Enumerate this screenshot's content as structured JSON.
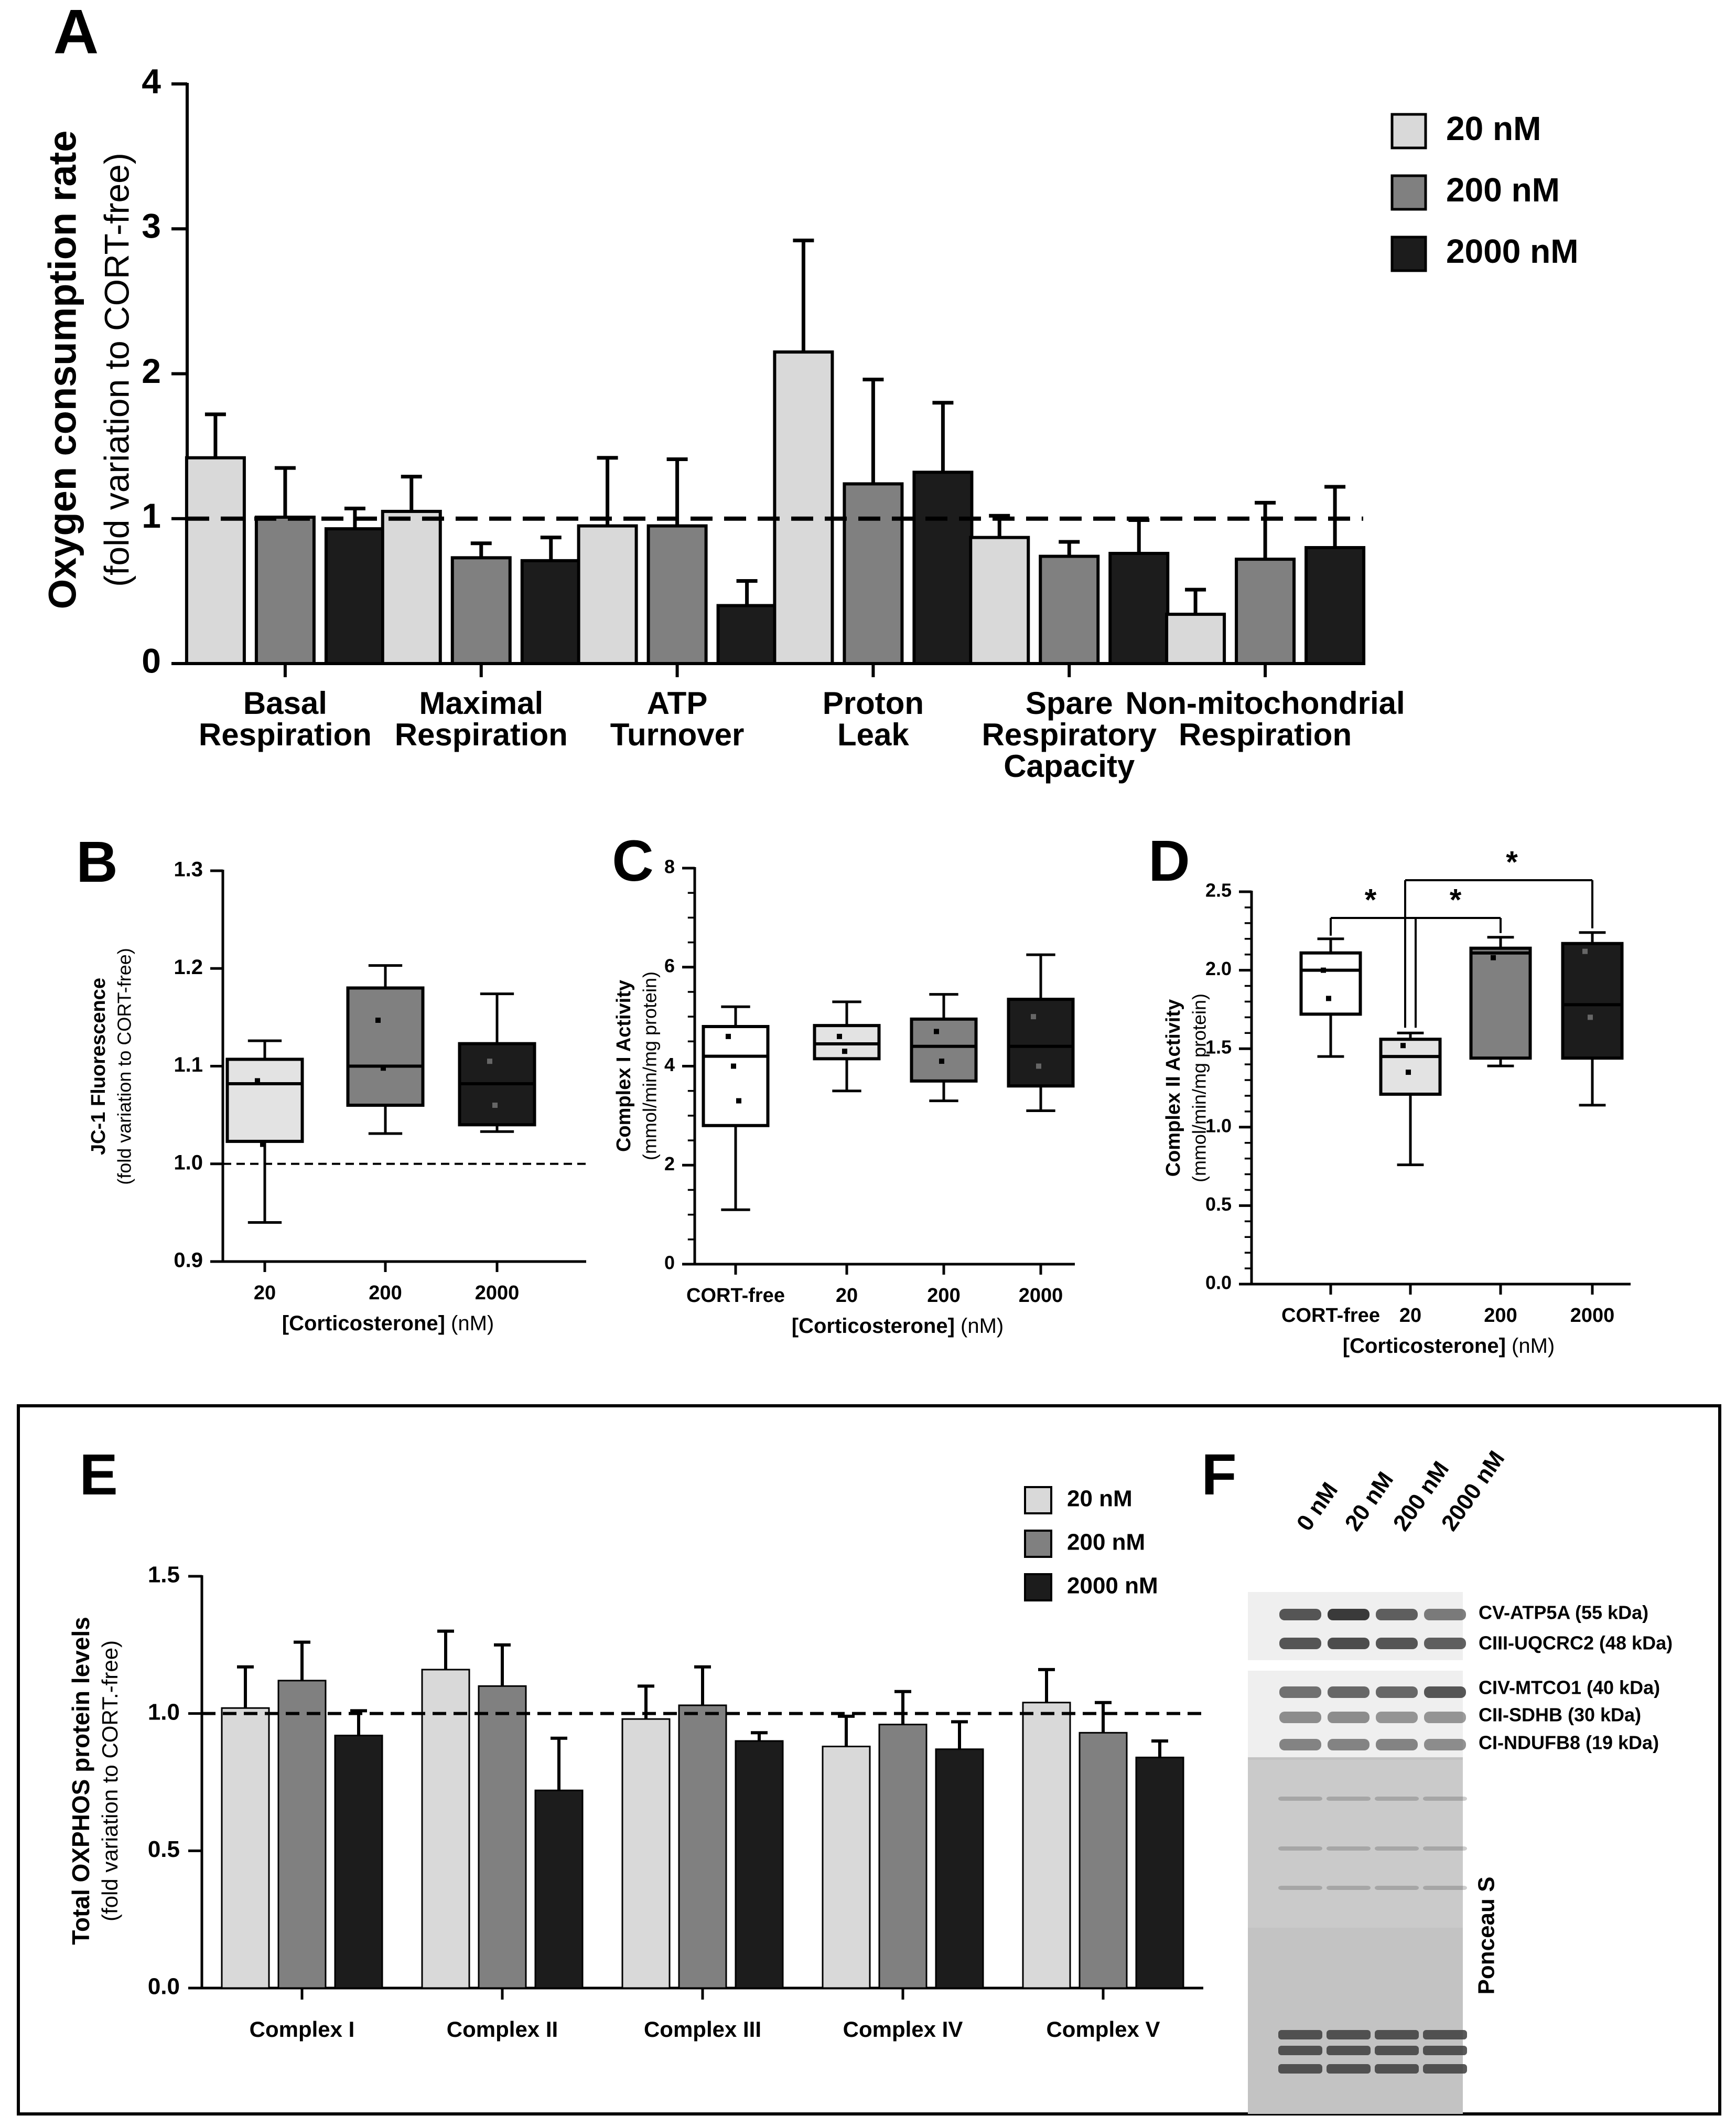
{
  "colors": {
    "c20": "#d9d9d9",
    "c200": "#808080",
    "c2000": "#1c1c1c",
    "cortfree": "#ffffff",
    "stroke": "#000000",
    "blot_bg": "#efefef",
    "band": "#3a3a3a",
    "ponceau": "#c3c3c3"
  },
  "chart_data": [
    {
      "panel": "A",
      "type": "bar",
      "ylabel": "Oxygen consumption rate",
      "ylabel2": "(fold variation to CORT-free)",
      "ylim": [
        0,
        4
      ],
      "yticks": [
        "0",
        "1",
        "2",
        "3",
        "4"
      ],
      "ytick_values": [
        0,
        1,
        2,
        3,
        4
      ],
      "reference_line": 1,
      "categories": [
        [
          "Basal",
          "Respiration"
        ],
        [
          "Maximal",
          "Respiration"
        ],
        [
          "ATP",
          "Turnover"
        ],
        [
          "Proton",
          "Leak"
        ],
        [
          "Spare",
          "Respiratory",
          "Capacity"
        ],
        [
          "Non-mitochondrial",
          "Respiration"
        ]
      ],
      "series": [
        {
          "name": "20 nM",
          "values": [
            1.42,
            1.05,
            0.95,
            2.15,
            0.87,
            0.34
          ],
          "errors": [
            0.3,
            0.24,
            0.47,
            0.77,
            0.15,
            0.17
          ]
        },
        {
          "name": "200 nM",
          "values": [
            1.01,
            0.73,
            0.95,
            1.24,
            0.74,
            0.72
          ],
          "errors": [
            0.34,
            0.1,
            0.46,
            0.72,
            0.1,
            0.39
          ]
        },
        {
          "name": "2000 nM",
          "values": [
            0.93,
            0.71,
            0.4,
            1.32,
            0.76,
            0.8
          ],
          "errors": [
            0.14,
            0.16,
            0.17,
            0.48,
            0.23,
            0.42
          ]
        }
      ],
      "legend": [
        "20 nM",
        "200 nM",
        "2000 nM"
      ]
    },
    {
      "panel": "B",
      "type": "box",
      "ylabel": "JC-1 Fluorescence",
      "ylabel2": "(fold variation to CORT-free)",
      "ylim": [
        0.9,
        1.3
      ],
      "yticks": [
        "0.9",
        "1.0",
        "1.1",
        "1.2",
        "1.3"
      ],
      "ytick_values": [
        0.9,
        1.0,
        1.1,
        1.2,
        1.3
      ],
      "reference_line": 1.0,
      "xlabel_bold": "[Corticosterone]",
      "xlabel_unit": " (nM)",
      "categories": [
        "20",
        "200",
        "2000"
      ],
      "boxes": [
        {
          "min": 0.94,
          "q1": 1.023,
          "median": 1.082,
          "q3": 1.107,
          "max": 1.126,
          "points": [
            1.085,
            1.02
          ],
          "fill": "#e3e3e3"
        },
        {
          "min": 1.031,
          "q1": 1.06,
          "median": 1.1,
          "q3": 1.18,
          "max": 1.203,
          "points": [
            1.147,
            1.098
          ],
          "fill": "#808080"
        },
        {
          "min": 1.033,
          "q1": 1.04,
          "median": 1.082,
          "q3": 1.123,
          "max": 1.174,
          "points": [
            1.105,
            1.06
          ],
          "fill": "#1c1c1c"
        }
      ]
    },
    {
      "panel": "C",
      "type": "box",
      "ylabel": "Complex I Activity",
      "ylabel2": "(mmol/min/mg protein)",
      "ylim": [
        0,
        8
      ],
      "yticks": [
        "0",
        "2",
        "4",
        "6",
        "8"
      ],
      "ytick_values": [
        0,
        2,
        4,
        6,
        8
      ],
      "xlabel_bold": "[Corticosterone]",
      "xlabel_unit": " (nM)",
      "categories": [
        "CORT-free",
        "20",
        "200",
        "2000"
      ],
      "boxes": [
        {
          "min": 1.1,
          "q1": 2.8,
          "median": 4.2,
          "q3": 4.8,
          "max": 5.2,
          "points": [
            4.6,
            4.0,
            3.3
          ],
          "fill": "#ffffff"
        },
        {
          "min": 3.5,
          "q1": 4.15,
          "median": 4.45,
          "q3": 4.82,
          "max": 5.3,
          "points": [
            4.6,
            4.3
          ],
          "fill": "#e3e3e3"
        },
        {
          "min": 3.3,
          "q1": 3.7,
          "median": 4.4,
          "q3": 4.95,
          "max": 5.45,
          "points": [
            4.7,
            4.1
          ],
          "fill": "#808080"
        },
        {
          "min": 3.1,
          "q1": 3.6,
          "median": 4.4,
          "q3": 5.35,
          "max": 6.25,
          "points": [
            5.0,
            4.0
          ],
          "fill": "#1c1c1c"
        }
      ]
    },
    {
      "panel": "D",
      "type": "box",
      "ylabel": "Complex II Activity",
      "ylabel2": "(mmol/min/mg protein)",
      "ylim": [
        0,
        2.5
      ],
      "yticks": [
        "0.0",
        "0.5",
        "1.0",
        "1.5",
        "2.0",
        "2.5"
      ],
      "ytick_values": [
        0,
        0.5,
        1.0,
        1.5,
        2.0,
        2.5
      ],
      "xlabel_bold": "[Corticosterone]",
      "xlabel_unit": " (nM)",
      "categories": [
        "CORT-free",
        "20",
        "200",
        "2000"
      ],
      "significance": "*",
      "boxes": [
        {
          "min": 1.45,
          "q1": 1.72,
          "median": 2.0,
          "q3": 2.11,
          "max": 2.2,
          "points": [
            2.0,
            1.82
          ],
          "fill": "#ffffff"
        },
        {
          "min": 0.76,
          "q1": 1.21,
          "median": 1.45,
          "q3": 1.56,
          "max": 1.6,
          "points": [
            1.52,
            1.35
          ],
          "fill": "#e3e3e3"
        },
        {
          "min": 1.39,
          "q1": 1.44,
          "median": 2.11,
          "q3": 2.14,
          "max": 2.21,
          "points": [
            2.08
          ],
          "fill": "#808080"
        },
        {
          "min": 1.14,
          "q1": 1.44,
          "median": 1.78,
          "q3": 2.17,
          "max": 2.24,
          "points": [
            2.12,
            1.7
          ],
          "fill": "#1c1c1c"
        }
      ]
    },
    {
      "panel": "E",
      "type": "bar",
      "ylabel": "Total OXPHOS protein levels",
      "ylabel2": "(fold variation to CORT.-free)",
      "ylim": [
        0,
        1.5
      ],
      "yticks": [
        "0.0",
        "0.5",
        "1.0",
        "1.5"
      ],
      "ytick_values": [
        0,
        0.5,
        1.0,
        1.5
      ],
      "reference_line": 1.0,
      "categories": [
        "Complex I",
        "Complex II",
        "Complex III",
        "Complex IV",
        "Complex V"
      ],
      "series": [
        {
          "name": "20 nM",
          "values": [
            1.02,
            1.16,
            0.98,
            0.88,
            1.04
          ],
          "errors": [
            0.15,
            0.14,
            0.12,
            0.11,
            0.12
          ]
        },
        {
          "name": "200 nM",
          "values": [
            1.12,
            1.1,
            1.03,
            0.96,
            0.93
          ],
          "errors": [
            0.14,
            0.15,
            0.14,
            0.12,
            0.11
          ]
        },
        {
          "name": "2000 nM",
          "values": [
            0.92,
            0.72,
            0.9,
            0.87,
            0.84
          ],
          "errors": [
            0.09,
            0.19,
            0.03,
            0.1,
            0.06
          ]
        }
      ],
      "legend": [
        "20 nM",
        "200 nM",
        "2000 nM"
      ]
    }
  ],
  "blot": {
    "panel": "F",
    "lanes": [
      "0 nM",
      "20 nM",
      "200 nM",
      "2000 nM"
    ],
    "bands": [
      {
        "label": "CV-ATP5A (55 kDa)",
        "intensity": [
          0.85,
          1.0,
          0.8,
          0.65
        ]
      },
      {
        "label": "CIII-UQCRC2 (48 kDa)",
        "intensity": [
          0.85,
          0.9,
          0.85,
          0.8
        ]
      },
      {
        "label": "CIV-MTCO1 (40 kDa)",
        "intensity": [
          0.7,
          0.75,
          0.75,
          0.85
        ]
      },
      {
        "label": "CII-SDHB (30 kDa)",
        "intensity": [
          0.55,
          0.55,
          0.5,
          0.5
        ]
      },
      {
        "label": "CI-NDUFB8 (19 kDa)",
        "intensity": [
          0.6,
          0.6,
          0.6,
          0.55
        ]
      }
    ],
    "ponceau_label": "Ponceau S"
  }
}
